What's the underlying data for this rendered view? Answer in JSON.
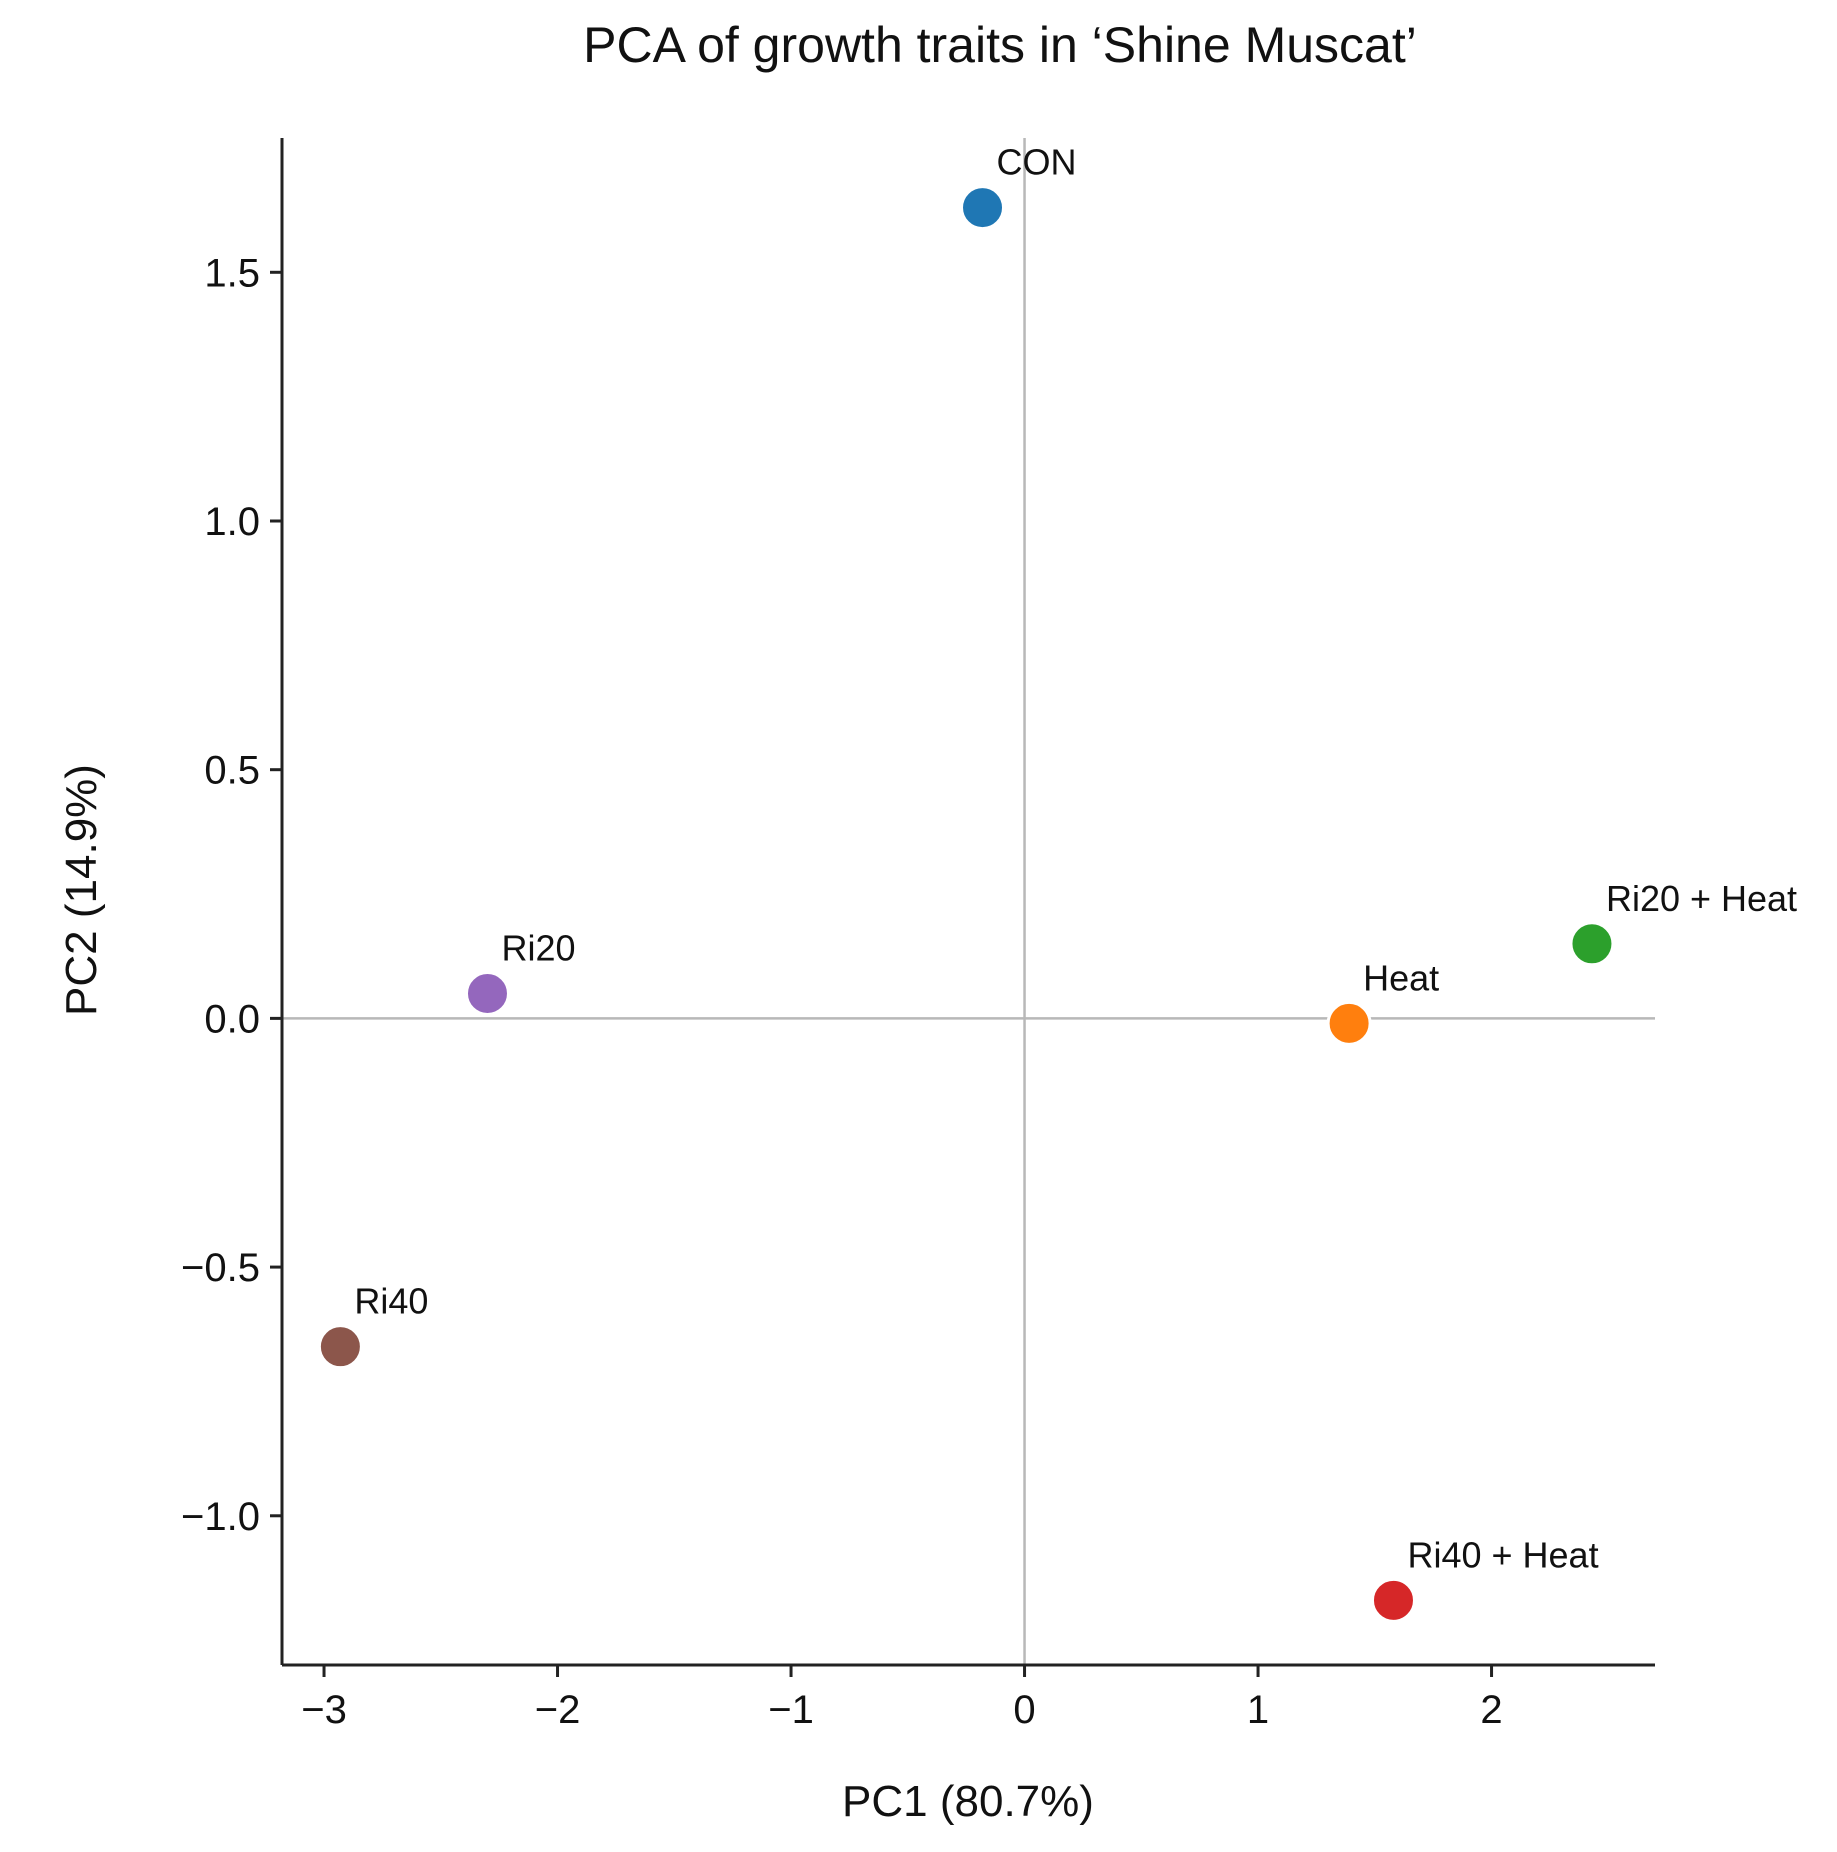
{
  "chart_data": {
    "type": "scatter",
    "title": "PCA of growth traits in ‘Shine Muscat’",
    "xlabel": "PC1 (80.7%)",
    "ylabel": "PC2 (14.9%)",
    "xlim": [
      -3.18,
      2.7
    ],
    "ylim": [
      -1.3,
      1.77
    ],
    "xticks": [
      -3,
      -2,
      -1,
      0,
      1,
      2
    ],
    "yticks": [
      -1.0,
      -0.5,
      0.0,
      0.5,
      1.0,
      1.5
    ],
    "xtick_labels": [
      "−3",
      "−2",
      "−1",
      "0",
      "1",
      "2"
    ],
    "ytick_labels": [
      "−1.0",
      "−0.5",
      "0.0",
      "0.5",
      "1.0",
      "1.5"
    ],
    "reference_lines": {
      "x": 0,
      "y": 0
    },
    "grid": false,
    "points": [
      {
        "label": "CON",
        "x": -0.18,
        "y": 1.63,
        "color": "#1f77b4"
      },
      {
        "label": "Ri20",
        "x": -2.3,
        "y": 0.05,
        "color": "#9467bd"
      },
      {
        "label": "Ri40",
        "x": -2.93,
        "y": -0.66,
        "color": "#8c564b"
      },
      {
        "label": "Heat",
        "x": 1.39,
        "y": -0.01,
        "color": "#ff7f0e"
      },
      {
        "label": "Ri20 + Heat",
        "x": 2.43,
        "y": 0.15,
        "color": "#2ca02c"
      },
      {
        "label": "Ri40 + Heat",
        "x": 1.58,
        "y": -1.17,
        "color": "#d62728"
      }
    ]
  }
}
